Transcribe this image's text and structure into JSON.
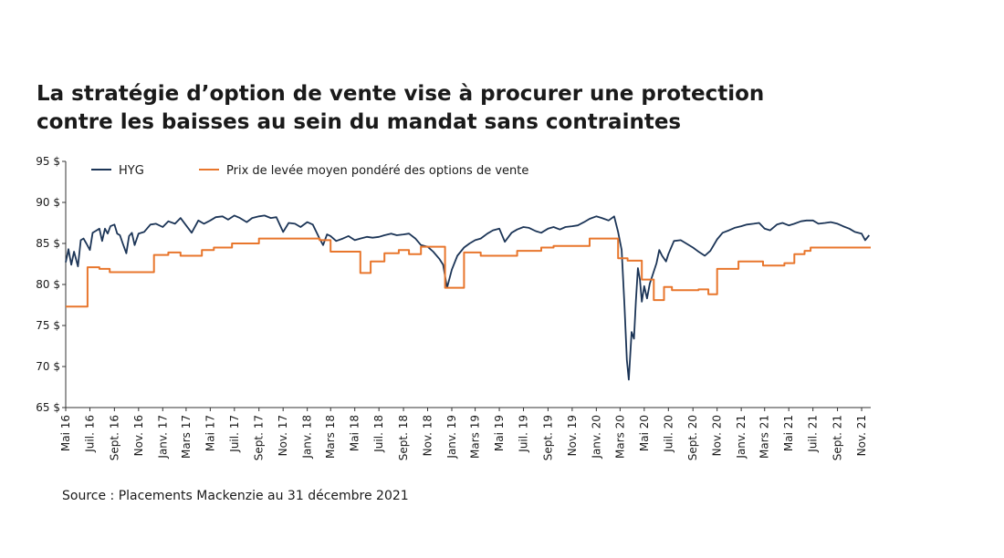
{
  "title_lines": [
    "La stratégie d’option de vente vise à procurer une protection",
    "contre les baisses au sein du mandat sans contraintes"
  ],
  "source": "Source : Placements Mackenzie au 31 décembre 2021",
  "colors": {
    "hyg": "#1c3557",
    "strike": "#e8762c",
    "axis": "#333333"
  },
  "chart_data": {
    "type": "line",
    "title": "La stratégie d’option de vente vise à procurer une protection contre les baisses au sein du mandat sans contraintes",
    "ylim": [
      65,
      95
    ],
    "y_ticks": [
      95,
      90,
      85,
      80,
      75,
      70,
      65
    ],
    "y_tick_labels": [
      "95 $",
      "90 $",
      "85 $",
      "80 $",
      "75 $",
      "70 $",
      "65 $"
    ],
    "x_range": [
      "2016-05",
      "2021-11"
    ],
    "x_ticks": [
      {
        "date": "2016-05",
        "label": "Mai 16"
      },
      {
        "date": "2016-07",
        "label": "Juil. 16"
      },
      {
        "date": "2016-09",
        "label": "Sept. 16"
      },
      {
        "date": "2016-11",
        "label": "Nov. 16"
      },
      {
        "date": "2017-01",
        "label": "Janv. 17"
      },
      {
        "date": "2017-03",
        "label": "Mars 17"
      },
      {
        "date": "2017-05",
        "label": "Mai 17"
      },
      {
        "date": "2017-07",
        "label": "Juil. 17"
      },
      {
        "date": "2017-09",
        "label": "Sept. 17"
      },
      {
        "date": "2017-11",
        "label": "Nov. 17"
      },
      {
        "date": "2018-01",
        "label": "Janv. 18"
      },
      {
        "date": "2018-03",
        "label": "Mars 18"
      },
      {
        "date": "2018-05",
        "label": "Mai 18"
      },
      {
        "date": "2018-07",
        "label": "Juil. 18"
      },
      {
        "date": "2018-09",
        "label": "Sept. 18"
      },
      {
        "date": "2018-11",
        "label": "Nov. 18"
      },
      {
        "date": "2019-01",
        "label": "Janv. 19"
      },
      {
        "date": "2019-03",
        "label": "Mars 19"
      },
      {
        "date": "2019-05",
        "label": "Mai 19"
      },
      {
        "date": "2019-07",
        "label": "Juil. 19"
      },
      {
        "date": "2019-09",
        "label": "Sept. 19"
      },
      {
        "date": "2019-11",
        "label": "Nov. 19"
      },
      {
        "date": "2020-01",
        "label": "Janv. 20"
      },
      {
        "date": "2020-03",
        "label": "Mars 20"
      },
      {
        "date": "2020-05",
        "label": "Mai 20"
      },
      {
        "date": "2020-07",
        "label": "Juil. 20"
      },
      {
        "date": "2020-09",
        "label": "Sept. 20"
      },
      {
        "date": "2020-11",
        "label": "Nov. 20"
      },
      {
        "date": "2021-01",
        "label": "Janv. 21"
      },
      {
        "date": "2021-03",
        "label": "Mars 21"
      },
      {
        "date": "2021-05",
        "label": "Mai 21"
      },
      {
        "date": "2021-07",
        "label": "Juil. 21"
      },
      {
        "date": "2021-09",
        "label": "Sept. 21"
      },
      {
        "date": "2021-11",
        "label": "Nov. 21"
      }
    ],
    "legend_position": "top",
    "grid": false,
    "series": [
      {
        "name": "HYG",
        "color": "#1c3557",
        "step": false,
        "points": [
          [
            "2016-05-01",
            82.7
          ],
          [
            "2016-05-08",
            84.3
          ],
          [
            "2016-05-15",
            82.4
          ],
          [
            "2016-05-22",
            84.0
          ],
          [
            "2016-06-01",
            82.2
          ],
          [
            "2016-06-08",
            85.4
          ],
          [
            "2016-06-15",
            85.6
          ],
          [
            "2016-06-22",
            85.0
          ],
          [
            "2016-07-01",
            84.2
          ],
          [
            "2016-07-08",
            86.3
          ],
          [
            "2016-07-15",
            86.5
          ],
          [
            "2016-07-25",
            86.8
          ],
          [
            "2016-08-01",
            85.3
          ],
          [
            "2016-08-08",
            86.8
          ],
          [
            "2016-08-15",
            86.2
          ],
          [
            "2016-08-22",
            87.1
          ],
          [
            "2016-09-01",
            87.3
          ],
          [
            "2016-09-08",
            86.2
          ],
          [
            "2016-09-15",
            86.0
          ],
          [
            "2016-09-22",
            85.0
          ],
          [
            "2016-10-01",
            83.8
          ],
          [
            "2016-10-08",
            85.9
          ],
          [
            "2016-10-15",
            86.3
          ],
          [
            "2016-10-22",
            84.8
          ],
          [
            "2016-11-01",
            86.2
          ],
          [
            "2016-11-15",
            86.4
          ],
          [
            "2016-12-01",
            87.3
          ],
          [
            "2016-12-15",
            87.4
          ],
          [
            "2017-01-01",
            87.0
          ],
          [
            "2017-01-15",
            87.7
          ],
          [
            "2017-02-01",
            87.4
          ],
          [
            "2017-02-15",
            88.1
          ],
          [
            "2017-03-01",
            87.2
          ],
          [
            "2017-03-15",
            86.3
          ],
          [
            "2017-04-01",
            87.8
          ],
          [
            "2017-04-15",
            87.4
          ],
          [
            "2017-05-01",
            87.8
          ],
          [
            "2017-05-15",
            88.2
          ],
          [
            "2017-06-01",
            88.3
          ],
          [
            "2017-06-15",
            87.9
          ],
          [
            "2017-07-01",
            88.4
          ],
          [
            "2017-07-15",
            88.1
          ],
          [
            "2017-08-01",
            87.6
          ],
          [
            "2017-08-15",
            88.1
          ],
          [
            "2017-09-01",
            88.3
          ],
          [
            "2017-09-15",
            88.4
          ],
          [
            "2017-10-01",
            88.1
          ],
          [
            "2017-10-15",
            88.2
          ],
          [
            "2017-11-01",
            86.4
          ],
          [
            "2017-11-15",
            87.5
          ],
          [
            "2017-12-01",
            87.4
          ],
          [
            "2017-12-15",
            87.0
          ],
          [
            "2018-01-01",
            87.6
          ],
          [
            "2018-01-15",
            87.3
          ],
          [
            "2018-02-01",
            85.6
          ],
          [
            "2018-02-10",
            84.8
          ],
          [
            "2018-02-20",
            86.1
          ],
          [
            "2018-03-01",
            85.9
          ],
          [
            "2018-03-15",
            85.3
          ],
          [
            "2018-04-01",
            85.6
          ],
          [
            "2018-04-15",
            85.9
          ],
          [
            "2018-05-01",
            85.4
          ],
          [
            "2018-05-15",
            85.6
          ],
          [
            "2018-06-01",
            85.8
          ],
          [
            "2018-06-15",
            85.7
          ],
          [
            "2018-07-01",
            85.8
          ],
          [
            "2018-07-15",
            86.0
          ],
          [
            "2018-08-01",
            86.2
          ],
          [
            "2018-08-15",
            86.0
          ],
          [
            "2018-09-01",
            86.1
          ],
          [
            "2018-09-15",
            86.2
          ],
          [
            "2018-10-01",
            85.6
          ],
          [
            "2018-10-15",
            84.8
          ],
          [
            "2018-11-01",
            84.6
          ],
          [
            "2018-11-15",
            84.0
          ],
          [
            "2018-12-01",
            83.1
          ],
          [
            "2018-12-10",
            82.4
          ],
          [
            "2018-12-20",
            79.6
          ],
          [
            "2019-01-01",
            81.8
          ],
          [
            "2019-01-15",
            83.5
          ],
          [
            "2019-02-01",
            84.5
          ],
          [
            "2019-02-15",
            85.0
          ],
          [
            "2019-03-01",
            85.4
          ],
          [
            "2019-03-15",
            85.6
          ],
          [
            "2019-04-01",
            86.2
          ],
          [
            "2019-04-15",
            86.6
          ],
          [
            "2019-05-01",
            86.8
          ],
          [
            "2019-05-15",
            85.2
          ],
          [
            "2019-06-01",
            86.3
          ],
          [
            "2019-06-15",
            86.7
          ],
          [
            "2019-07-01",
            87.0
          ],
          [
            "2019-07-15",
            86.9
          ],
          [
            "2019-08-01",
            86.5
          ],
          [
            "2019-08-15",
            86.3
          ],
          [
            "2019-09-01",
            86.8
          ],
          [
            "2019-09-15",
            87.0
          ],
          [
            "2019-10-01",
            86.7
          ],
          [
            "2019-10-15",
            87.0
          ],
          [
            "2019-11-01",
            87.1
          ],
          [
            "2019-11-15",
            87.2
          ],
          [
            "2019-12-01",
            87.6
          ],
          [
            "2019-12-15",
            88.0
          ],
          [
            "2020-01-01",
            88.3
          ],
          [
            "2020-01-15",
            88.1
          ],
          [
            "2020-02-01",
            87.8
          ],
          [
            "2020-02-15",
            88.3
          ],
          [
            "2020-02-25",
            86.4
          ],
          [
            "2020-03-05",
            84.2
          ],
          [
            "2020-03-12",
            77.4
          ],
          [
            "2020-03-18",
            70.8
          ],
          [
            "2020-03-23",
            68.4
          ],
          [
            "2020-03-30",
            74.2
          ],
          [
            "2020-04-05",
            73.4
          ],
          [
            "2020-04-10",
            78.0
          ],
          [
            "2020-04-15",
            82.0
          ],
          [
            "2020-04-20",
            80.6
          ],
          [
            "2020-04-25",
            77.9
          ],
          [
            "2020-05-01",
            79.8
          ],
          [
            "2020-05-08",
            78.3
          ],
          [
            "2020-05-15",
            80.1
          ],
          [
            "2020-06-01",
            82.6
          ],
          [
            "2020-06-08",
            84.2
          ],
          [
            "2020-06-15",
            83.5
          ],
          [
            "2020-06-25",
            82.8
          ],
          [
            "2020-07-01",
            83.7
          ],
          [
            "2020-07-15",
            85.3
          ],
          [
            "2020-08-01",
            85.4
          ],
          [
            "2020-08-15",
            85.0
          ],
          [
            "2020-09-01",
            84.5
          ],
          [
            "2020-09-15",
            84.0
          ],
          [
            "2020-10-01",
            83.5
          ],
          [
            "2020-10-15",
            84.1
          ],
          [
            "2020-11-01",
            85.5
          ],
          [
            "2020-11-15",
            86.3
          ],
          [
            "2020-12-01",
            86.6
          ],
          [
            "2020-12-15",
            86.9
          ],
          [
            "2021-01-01",
            87.1
          ],
          [
            "2021-01-15",
            87.3
          ],
          [
            "2021-02-01",
            87.4
          ],
          [
            "2021-02-15",
            87.5
          ],
          [
            "2021-03-01",
            86.8
          ],
          [
            "2021-03-15",
            86.6
          ],
          [
            "2021-04-01",
            87.3
          ],
          [
            "2021-04-15",
            87.5
          ],
          [
            "2021-05-01",
            87.2
          ],
          [
            "2021-05-15",
            87.4
          ],
          [
            "2021-06-01",
            87.7
          ],
          [
            "2021-06-15",
            87.8
          ],
          [
            "2021-07-01",
            87.8
          ],
          [
            "2021-07-15",
            87.4
          ],
          [
            "2021-08-01",
            87.5
          ],
          [
            "2021-08-15",
            87.6
          ],
          [
            "2021-09-01",
            87.4
          ],
          [
            "2021-09-15",
            87.1
          ],
          [
            "2021-10-01",
            86.8
          ],
          [
            "2021-10-15",
            86.4
          ],
          [
            "2021-11-01",
            86.2
          ],
          [
            "2021-11-10",
            85.4
          ],
          [
            "2021-11-20",
            86.0
          ]
        ]
      },
      {
        "name": "Prix de levée moyen pondéré des options de vente",
        "color": "#e8762c",
        "step": true,
        "points": [
          [
            "2016-05-01",
            77.3
          ],
          [
            "2016-06-25",
            82.1
          ],
          [
            "2016-07-25",
            81.9
          ],
          [
            "2016-08-20",
            81.5
          ],
          [
            "2016-12-10",
            83.6
          ],
          [
            "2017-01-15",
            83.9
          ],
          [
            "2017-02-15",
            83.5
          ],
          [
            "2017-04-10",
            84.2
          ],
          [
            "2017-05-10",
            84.5
          ],
          [
            "2017-06-25",
            85.0
          ],
          [
            "2017-09-01",
            85.6
          ],
          [
            "2018-02-01",
            85.4
          ],
          [
            "2018-03-01",
            84.0
          ],
          [
            "2018-05-15",
            81.4
          ],
          [
            "2018-06-10",
            82.8
          ],
          [
            "2018-07-15",
            83.8
          ],
          [
            "2018-08-20",
            84.2
          ],
          [
            "2018-09-15",
            83.7
          ],
          [
            "2018-10-15",
            84.6
          ],
          [
            "2018-12-15",
            79.6
          ],
          [
            "2019-02-01",
            83.9
          ],
          [
            "2019-03-15",
            83.5
          ],
          [
            "2019-06-15",
            84.1
          ],
          [
            "2019-08-15",
            84.5
          ],
          [
            "2019-09-15",
            84.7
          ],
          [
            "2019-12-15",
            85.6
          ],
          [
            "2020-02-25",
            83.2
          ],
          [
            "2020-03-20",
            82.9
          ],
          [
            "2020-04-25",
            80.6
          ],
          [
            "2020-05-25",
            78.1
          ],
          [
            "2020-06-20",
            79.7
          ],
          [
            "2020-07-10",
            79.3
          ],
          [
            "2020-09-15",
            79.4
          ],
          [
            "2020-10-10",
            78.8
          ],
          [
            "2020-11-01",
            81.9
          ],
          [
            "2020-12-25",
            82.8
          ],
          [
            "2021-02-25",
            82.3
          ],
          [
            "2021-04-20",
            82.6
          ],
          [
            "2021-05-15",
            83.7
          ],
          [
            "2021-06-10",
            84.1
          ],
          [
            "2021-06-25",
            84.5
          ],
          [
            "2021-11-20",
            84.5
          ]
        ]
      }
    ]
  }
}
